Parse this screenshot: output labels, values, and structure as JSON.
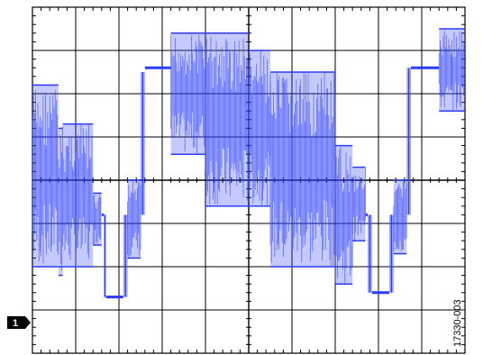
{
  "scope": {
    "channel_marker": "1",
    "figure_id": "17330-003",
    "trace_color": "#2b3cff",
    "grid_color": "#000000",
    "background": "#ffffff",
    "divisions": {
      "x": 10,
      "y": 8
    },
    "waveform": {
      "min": 0,
      "max": 8,
      "segments": [
        {
          "x0": 0.0,
          "x1": 0.6,
          "type": "band",
          "lo": 2.0,
          "hi": 6.2
        },
        {
          "x0": 0.6,
          "x1": 0.7,
          "type": "band",
          "lo": 1.8,
          "hi": 5.2
        },
        {
          "x0": 0.7,
          "x1": 1.4,
          "type": "band",
          "lo": 2.0,
          "hi": 5.3
        },
        {
          "x0": 1.4,
          "x1": 1.6,
          "type": "band",
          "lo": 2.5,
          "hi": 3.7
        },
        {
          "x0": 1.6,
          "x1": 1.65,
          "type": "flat",
          "lo": 3.2,
          "hi": 3.2
        },
        {
          "x0": 1.65,
          "x1": 1.7,
          "type": "edge",
          "lo": 1.3,
          "hi": 3.2
        },
        {
          "x0": 1.7,
          "x1": 2.1,
          "type": "flat",
          "lo": 1.3,
          "hi": 1.3
        },
        {
          "x0": 2.1,
          "x1": 2.2,
          "type": "edge",
          "lo": 1.3,
          "hi": 3.2
        },
        {
          "x0": 2.2,
          "x1": 2.5,
          "type": "band",
          "lo": 2.2,
          "hi": 4.0
        },
        {
          "x0": 2.5,
          "x1": 2.6,
          "type": "edge",
          "lo": 3.2,
          "hi": 6.5
        },
        {
          "x0": 2.6,
          "x1": 3.2,
          "type": "flat",
          "lo": 6.6,
          "hi": 6.6
        },
        {
          "x0": 3.2,
          "x1": 4.0,
          "type": "band",
          "lo": 4.6,
          "hi": 7.4
        },
        {
          "x0": 4.0,
          "x1": 5.0,
          "type": "band",
          "lo": 3.4,
          "hi": 7.4
        },
        {
          "x0": 5.0,
          "x1": 5.5,
          "type": "band",
          "lo": 3.4,
          "hi": 7.0
        },
        {
          "x0": 5.5,
          "x1": 7.0,
          "type": "band",
          "lo": 2.0,
          "hi": 6.5
        },
        {
          "x0": 7.0,
          "x1": 7.4,
          "type": "band",
          "lo": 1.6,
          "hi": 4.8
        },
        {
          "x0": 7.4,
          "x1": 7.7,
          "type": "band",
          "lo": 2.6,
          "hi": 4.3
        },
        {
          "x0": 7.7,
          "x1": 7.75,
          "type": "flat",
          "lo": 3.2,
          "hi": 3.2
        },
        {
          "x0": 7.75,
          "x1": 7.85,
          "type": "edge",
          "lo": 1.4,
          "hi": 3.2
        },
        {
          "x0": 7.85,
          "x1": 8.25,
          "type": "flat",
          "lo": 1.4,
          "hi": 1.4
        },
        {
          "x0": 8.25,
          "x1": 8.35,
          "type": "edge",
          "lo": 1.4,
          "hi": 3.2
        },
        {
          "x0": 8.35,
          "x1": 8.65,
          "type": "band",
          "lo": 2.3,
          "hi": 4.0
        },
        {
          "x0": 8.65,
          "x1": 8.75,
          "type": "edge",
          "lo": 3.2,
          "hi": 6.6
        },
        {
          "x0": 8.75,
          "x1": 9.4,
          "type": "flat",
          "lo": 6.6,
          "hi": 6.6
        },
        {
          "x0": 9.4,
          "x1": 9.7,
          "type": "band",
          "lo": 5.6,
          "hi": 7.5
        },
        {
          "x0": 9.7,
          "x1": 10.0,
          "type": "band",
          "lo": 5.6,
          "hi": 7.5
        }
      ]
    }
  }
}
